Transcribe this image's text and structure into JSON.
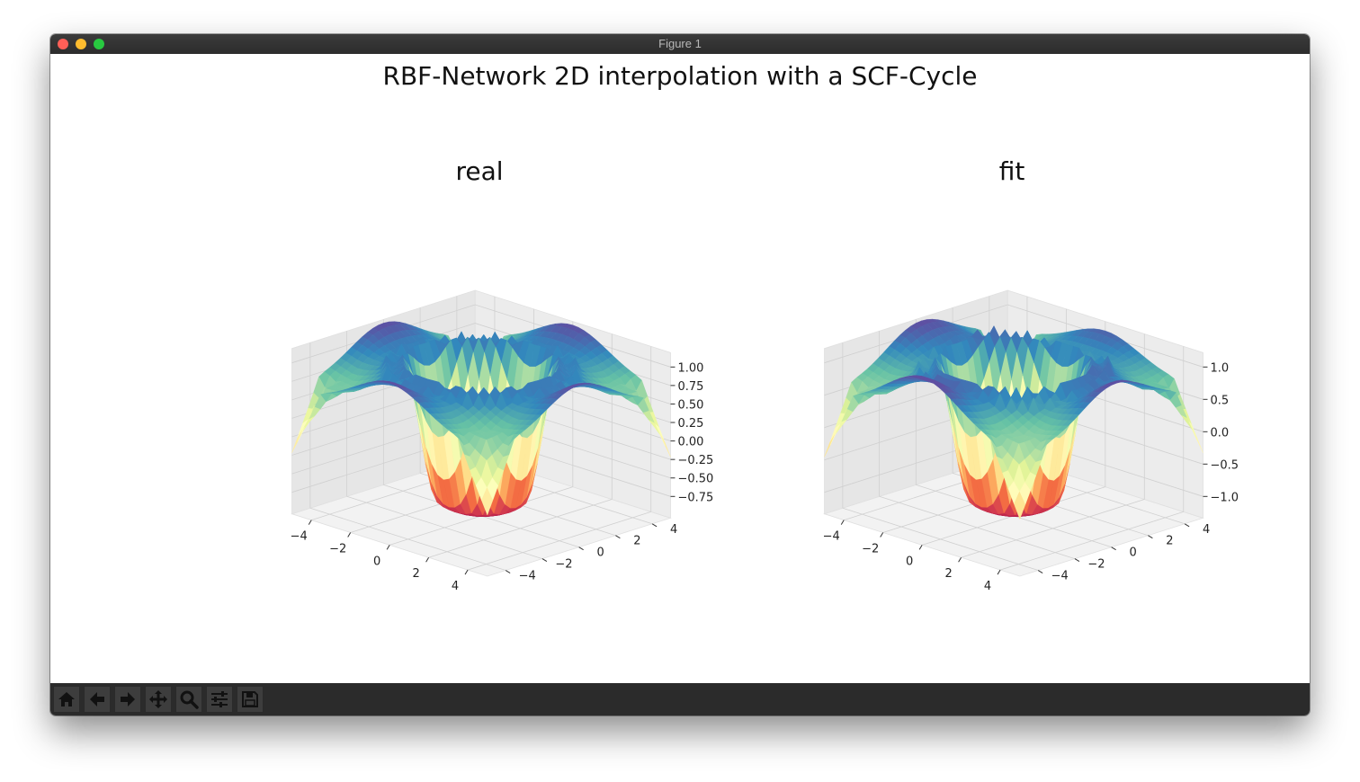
{
  "window": {
    "title": "Figure 1"
  },
  "figure": {
    "suptitle": "RBF-Network 2D interpolation with a SCF-Cycle"
  },
  "toolbar": {
    "buttons": [
      {
        "icon": "home-icon"
      },
      {
        "icon": "back-arrow-icon"
      },
      {
        "icon": "forward-arrow-icon"
      },
      {
        "icon": "pan-move-icon"
      },
      {
        "icon": "zoom-magnifier-icon"
      },
      {
        "icon": "configure-subplots-icon"
      },
      {
        "icon": "save-floppy-icon"
      }
    ]
  },
  "chart_data": [
    {
      "type": "surface3d",
      "title": "real",
      "colormap": "Spectral",
      "x_ticks": [
        "−4",
        "−2",
        "0",
        "2",
        "4"
      ],
      "y_ticks": [
        "4",
        "2",
        "0",
        "−2",
        "−4"
      ],
      "z_ticks": [
        "1.00",
        "0.75",
        "0.50",
        "0.25",
        "0.00",
        "−0.25",
        "−0.50",
        "−0.75"
      ],
      "xlim": [
        -5,
        5
      ],
      "ylim": [
        -5,
        5
      ],
      "zlim": [
        -1,
        1.2
      ],
      "grid": true
    },
    {
      "type": "surface3d",
      "title": "fit",
      "colormap": "Spectral",
      "x_ticks": [
        "−4",
        "−2",
        "0",
        "2",
        "4"
      ],
      "y_ticks": [
        "4",
        "2",
        "0",
        "−2",
        "−4"
      ],
      "z_ticks": [
        "1.0",
        "0.5",
        "0.0",
        "−0.5",
        "−1.0"
      ],
      "xlim": [
        -5,
        5
      ],
      "ylim": [
        -5,
        5
      ],
      "zlim": [
        -1,
        1.2
      ],
      "grid": true
    }
  ]
}
